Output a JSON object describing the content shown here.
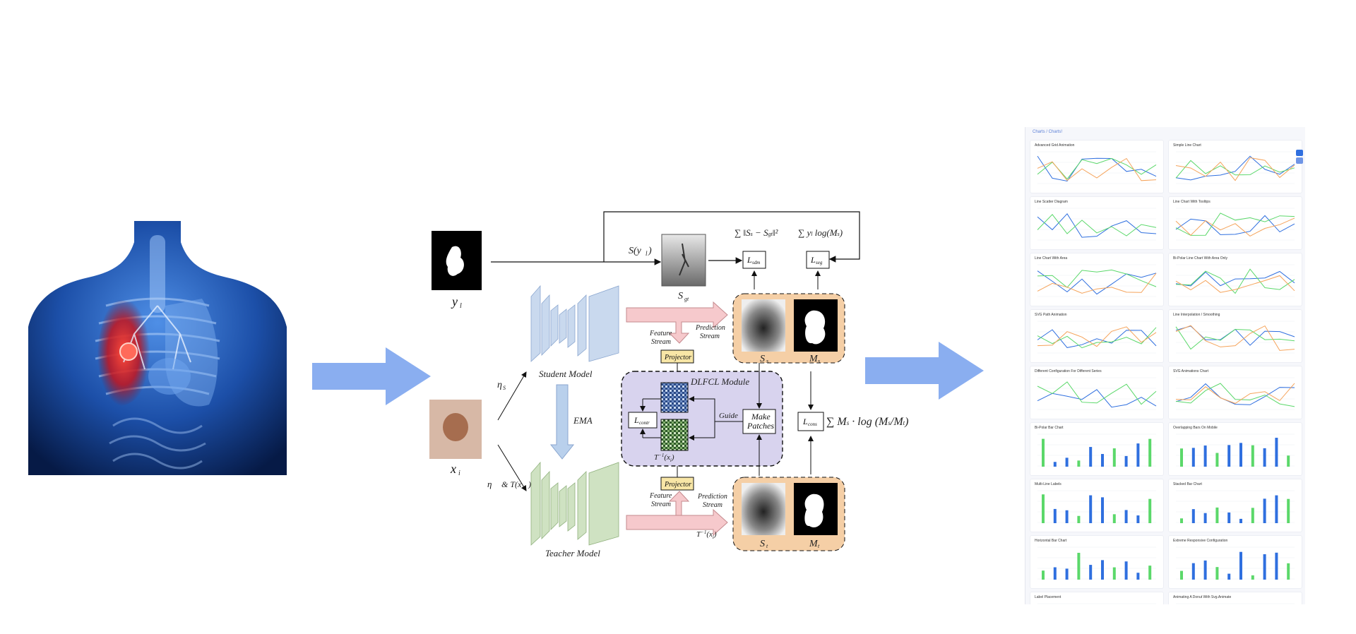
{
  "diagram": {
    "labels": {
      "y_label": "y",
      "y_sub": "l",
      "x_label": "x",
      "x_sub": "i",
      "s_yl": "S(y",
      "s_yl_sub": "l",
      "s_gt": "S",
      "s_gt_sub": "gt",
      "eta_s": "η",
      "eta_s_sub": "S",
      "eta_t": "η",
      "eta_t_text": "& T(x",
      "student_model": "Student Model",
      "teacher_model": "Teacher Model",
      "ema": "EMA",
      "feature_stream": "Feature",
      "feature_stream2": "Stream",
      "prediction_stream": "Prediction",
      "prediction_stream2": "Stream",
      "projector": "Projector",
      "dlfcl_module": "DLFCL Module",
      "l_contr": "L",
      "l_contr_sub": "contr",
      "guide": "Guide",
      "make_patches_1": "Make",
      "make_patches_2": "Patches",
      "t_inv": "T",
      "t_inv_rest": "(x",
      "s_s": "S",
      "s_s_sub": "s",
      "m_s": "M",
      "m_s_sub": "s",
      "s_t": "S",
      "s_t_sub": "t",
      "m_t": "M",
      "m_t_sub": "t",
      "l_sdm": "L",
      "l_sdm_sub": "sdm",
      "l_seg": "L",
      "l_seg_sub": "seg",
      "l_cons": "L",
      "l_cons_sub": "cons"
    }
  },
  "dashboard": {
    "breadcrumb": "Charts / Charts!",
    "cards": [
      {
        "title": "Advanced Grid Animation"
      },
      {
        "title": "Simple Line Chart"
      },
      {
        "title": "Line Scatter Diagram"
      },
      {
        "title": "Line Chart With Tooltips"
      },
      {
        "title": "Line Chart With Area"
      },
      {
        "title": "Bi-Polar Line Chart With Area Only"
      },
      {
        "title": "SVG Path Animation"
      },
      {
        "title": "Line Interpolation / Smoothing"
      },
      {
        "title": "Different Configuration For Different Series"
      },
      {
        "title": "SVG Animations Chart"
      },
      {
        "title": "Bi-Polar Bar Chart"
      },
      {
        "title": "Overlapping Bars On Mobile"
      },
      {
        "title": "Multi-Line Labels"
      },
      {
        "title": "Stacked Bar Chart"
      },
      {
        "title": "Horizontal Bar Chart"
      },
      {
        "title": "Extreme Responsive Configuration"
      },
      {
        "title": "Label Placement"
      },
      {
        "title": "Animating A Donut With Svg.Animate"
      }
    ],
    "colors": {
      "blue": "#2f6fdf",
      "green": "#5bd86a",
      "orange": "#f5a35a",
      "accent": "#3a7be0"
    }
  }
}
